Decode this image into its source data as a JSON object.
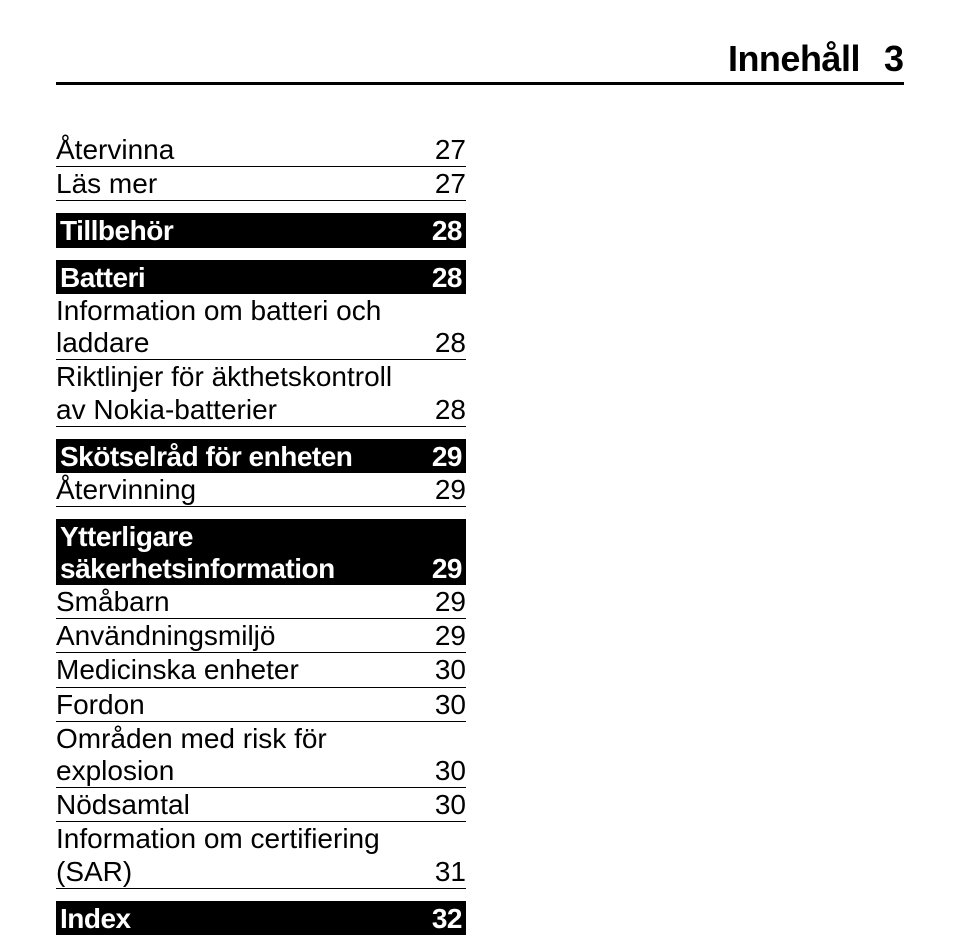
{
  "header": {
    "title": "Innehåll",
    "page": "3"
  },
  "group1": [
    {
      "label": "Återvinna",
      "num": "27"
    },
    {
      "label": "Läs mer",
      "num": "27"
    }
  ],
  "section_tillbehor": {
    "label": "Tillbehör",
    "num": "28"
  },
  "section_batteri": {
    "label": "Batteri",
    "num": "28"
  },
  "group_batteri": [
    {
      "label": "Information om batteri och laddare",
      "num": "28"
    },
    {
      "label": "Riktlinjer för äkthetskontroll av Nokia-batterier",
      "num": "28"
    }
  ],
  "section_skotsel": {
    "label": "Skötselråd för enheten",
    "num": "29"
  },
  "group_skotsel": [
    {
      "label": "Återvinning",
      "num": "29"
    }
  ],
  "section_ytter": {
    "label": "Ytterligare säkerhetsinformation",
    "num": "29"
  },
  "group_ytter": [
    {
      "label": "Småbarn",
      "num": "29"
    },
    {
      "label": "Användningsmiljö",
      "num": "29"
    },
    {
      "label": "Medicinska enheter",
      "num": "30"
    },
    {
      "label": "Fordon",
      "num": "30"
    },
    {
      "label": "Områden med risk för explosion",
      "num": "30"
    },
    {
      "label": "Nödsamtal",
      "num": "30"
    },
    {
      "label": "Information om certifiering (SAR)",
      "num": "31"
    }
  ],
  "section_index": {
    "label": "Index",
    "num": "32"
  }
}
